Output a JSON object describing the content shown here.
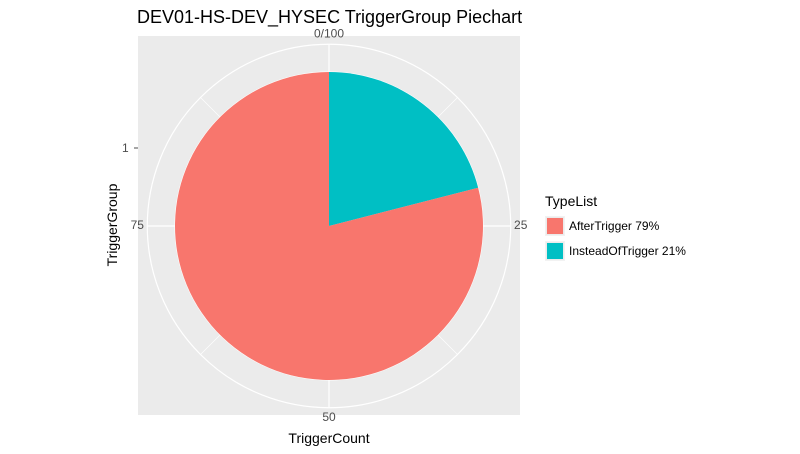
{
  "chart_data": {
    "type": "pie",
    "title": "DEV01-HS-DEV_HYSEC TriggerGroup Piechart",
    "xlabel": "TriggerCount",
    "ylabel": "TriggerGroup",
    "y_tick_labels": [
      "1"
    ],
    "angular_ticks": [
      {
        "value": 0,
        "label": "0/100"
      },
      {
        "value": 25,
        "label": "25"
      },
      {
        "value": 50,
        "label": "50"
      },
      {
        "value": 75,
        "label": "75"
      }
    ],
    "legend_title": "TypeList",
    "legend_position": "right",
    "panel_background": "#ebebeb",
    "grid_color": "#ffffff",
    "slices": [
      {
        "label": "InsteadOfTrigger 21%",
        "value": 21,
        "color": "#00bfc4"
      },
      {
        "label": "AfterTrigger 79%",
        "value": 79,
        "color": "#f8766d"
      }
    ],
    "legend": [
      {
        "label": "AfterTrigger 79%",
        "color": "#f8766d"
      },
      {
        "label": "InsteadOfTrigger 21%",
        "color": "#00bfc4"
      }
    ]
  }
}
